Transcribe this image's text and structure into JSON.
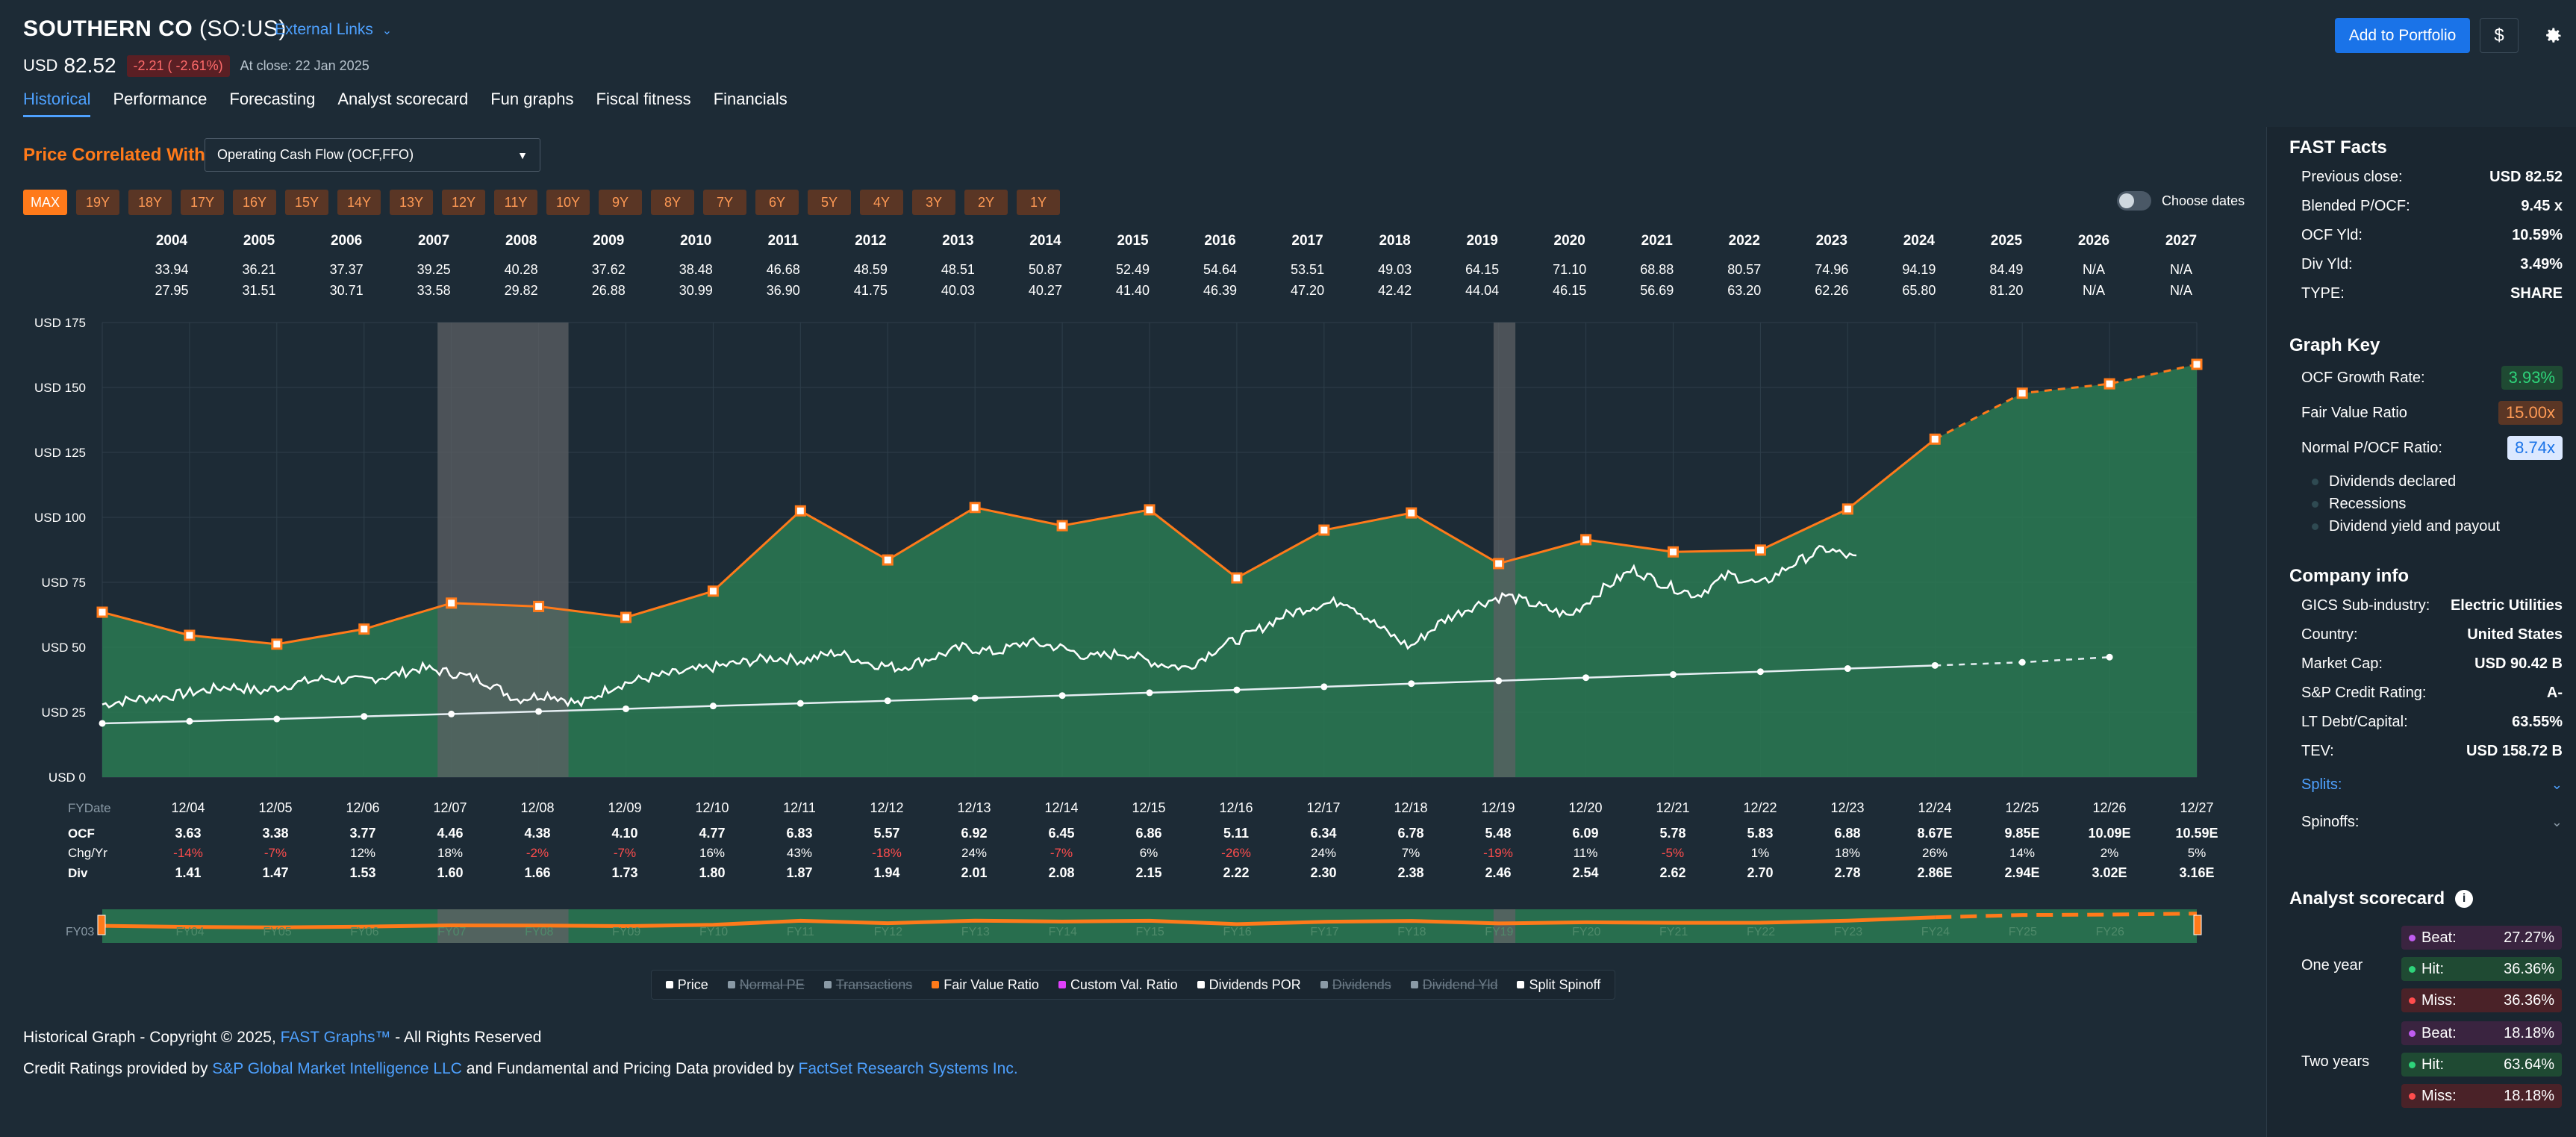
{
  "header": {
    "company": "SOUTHERN CO",
    "ticker": "(SO:US)",
    "external_links": "External Links",
    "currency": "USD",
    "price": "82.52",
    "change": "-2.21 ( -2.61%)",
    "close_text": "At close: 22 Jan 2025",
    "add_portfolio": "Add to Portfolio",
    "dollar_icon": "$"
  },
  "tabs": [
    "Historical",
    "Performance",
    "Forecasting",
    "Analyst scorecard",
    "Fun graphs",
    "Fiscal fitness",
    "Financials"
  ],
  "controls": {
    "price_correlated_label": "Price Correlated With",
    "metric_selected": "Operating Cash Flow (OCF,FFO)",
    "range_buttons": [
      "MAX",
      "19Y",
      "18Y",
      "17Y",
      "16Y",
      "15Y",
      "14Y",
      "13Y",
      "12Y",
      "11Y",
      "10Y",
      "9Y",
      "8Y",
      "7Y",
      "6Y",
      "5Y",
      "4Y",
      "3Y",
      "2Y",
      "1Y"
    ],
    "choose_dates": "Choose dates"
  },
  "chart_data": {
    "type": "area",
    "years": [
      "2004",
      "2005",
      "2006",
      "2007",
      "2008",
      "2009",
      "2010",
      "2011",
      "2012",
      "2013",
      "2014",
      "2015",
      "2016",
      "2017",
      "2018",
      "2019",
      "2020",
      "2021",
      "2022",
      "2023",
      "2024",
      "2025",
      "2026",
      "2027"
    ],
    "price_high": [
      "33.94",
      "36.21",
      "37.37",
      "39.25",
      "40.28",
      "37.62",
      "38.48",
      "46.68",
      "48.59",
      "48.51",
      "50.87",
      "52.49",
      "54.64",
      "53.51",
      "49.03",
      "64.15",
      "71.10",
      "68.88",
      "80.57",
      "74.96",
      "94.19",
      "84.49",
      "N/A",
      "N/A"
    ],
    "price_low": [
      "27.95",
      "31.51",
      "30.71",
      "33.58",
      "29.82",
      "26.88",
      "30.99",
      "36.90",
      "41.75",
      "40.03",
      "40.27",
      "41.40",
      "46.39",
      "47.20",
      "42.42",
      "44.04",
      "46.15",
      "56.69",
      "63.20",
      "62.26",
      "65.80",
      "81.20",
      "N/A",
      "N/A"
    ],
    "y_ticks": [
      "USD 175",
      "USD 150",
      "USD 125",
      "USD 100",
      "USD 75",
      "USD 50",
      "USD 25",
      "USD 0"
    ],
    "ylim": [
      0,
      175
    ],
    "fy_label": "FYDate",
    "fy_dates": [
      "12/04",
      "12/05",
      "12/06",
      "12/07",
      "12/08",
      "12/09",
      "12/10",
      "12/11",
      "12/12",
      "12/13",
      "12/14",
      "12/15",
      "12/16",
      "12/17",
      "12/18",
      "12/19",
      "12/20",
      "12/21",
      "12/22",
      "12/23",
      "12/24",
      "12/25",
      "12/26",
      "12/27"
    ],
    "ocf_label": "OCF",
    "ocf": [
      "3.63",
      "3.38",
      "3.77",
      "4.46",
      "4.38",
      "4.10",
      "4.77",
      "6.83",
      "5.57",
      "6.92",
      "6.45",
      "6.86",
      "5.11",
      "6.34",
      "6.78",
      "5.48",
      "6.09",
      "5.78",
      "5.83",
      "6.88",
      "8.67E",
      "9.85E",
      "10.09E",
      "10.59E"
    ],
    "chg_label": "Chg/Yr",
    "chg": [
      "-14%",
      "-7%",
      "12%",
      "18%",
      "-2%",
      "-7%",
      "16%",
      "43%",
      "-18%",
      "24%",
      "-7%",
      "6%",
      "-26%",
      "24%",
      "7%",
      "-19%",
      "11%",
      "-5%",
      "1%",
      "18%",
      "26%",
      "14%",
      "2%",
      "5%"
    ],
    "div_label": "Div",
    "div": [
      "1.41",
      "1.47",
      "1.53",
      "1.60",
      "1.66",
      "1.73",
      "1.80",
      "1.87",
      "1.94",
      "2.01",
      "2.08",
      "2.15",
      "2.22",
      "2.30",
      "2.38",
      "2.46",
      "2.54",
      "2.62",
      "2.70",
      "2.78",
      "2.86E",
      "2.94E",
      "3.02E",
      "3.16E"
    ],
    "fair_value": [
      63.5,
      54.6,
      51.2,
      57.0,
      67.0,
      65.7,
      61.5,
      71.6,
      102.5,
      83.6,
      103.8,
      96.8,
      102.9,
      76.7,
      95.1,
      101.7,
      82.2,
      91.4,
      86.7,
      87.4,
      103.2,
      130.1,
      147.8,
      151.4,
      158.9
    ],
    "fair_value_x": [
      0,
      1,
      2,
      3,
      4,
      5,
      6,
      7,
      8,
      9,
      10,
      11,
      12,
      13,
      14,
      15,
      16,
      17,
      18,
      19,
      20,
      21,
      22,
      23,
      24
    ],
    "dividends_por": [
      20.7,
      21.5,
      22.4,
      23.4,
      24.3,
      25.3,
      26.3,
      27.4,
      28.4,
      29.4,
      30.4,
      31.4,
      32.5,
      33.6,
      34.8,
      36.0,
      37.1,
      38.3,
      39.5,
      40.6,
      41.8,
      43.0,
      44.2,
      46.2
    ],
    "price_path": [
      28,
      30,
      31,
      33,
      35,
      33,
      36,
      38,
      37,
      39,
      42,
      40,
      37,
      30,
      32,
      28,
      35,
      38,
      40,
      42,
      44,
      46,
      45,
      48,
      44,
      42,
      46,
      50,
      48,
      52,
      50,
      46,
      48,
      44,
      42,
      50,
      55,
      62,
      66,
      68,
      58,
      50,
      60,
      66,
      70,
      66,
      62,
      72,
      80,
      74,
      70,
      78,
      74,
      82,
      88,
      84
    ],
    "price_path_x_start": 0,
    "price_path_x_end": 20.1,
    "recessions": [
      [
        3.0,
        4.5
      ],
      [
        15.1,
        15.35
      ]
    ],
    "mini_labels": [
      "FY03",
      "FY04",
      "FY05",
      "FY06",
      "FY07",
      "FY08",
      "FY09",
      "FY10",
      "FY11",
      "FY12",
      "FY13",
      "FY14",
      "FY15",
      "FY16",
      "FY17",
      "FY18",
      "FY19",
      "FY20",
      "FY21",
      "FY22",
      "FY23",
      "FY24",
      "FY25",
      "FY26"
    ]
  },
  "legend": [
    {
      "label": "Price",
      "off": false,
      "color": "#ffffff"
    },
    {
      "label": "Normal PE",
      "off": true,
      "color": "#8a9aa6"
    },
    {
      "label": "Transactions",
      "off": true,
      "color": "#8a9aa6"
    },
    {
      "label": "Fair Value Ratio",
      "off": false,
      "color": "#ff7a1a"
    },
    {
      "label": "Custom Val. Ratio",
      "off": false,
      "color": "#e040fb"
    },
    {
      "label": "Dividends POR",
      "off": false,
      "color": "#ffffff"
    },
    {
      "label": "Dividends",
      "off": true,
      "color": "#8a9aa6"
    },
    {
      "label": "Dividend Yld",
      "off": true,
      "color": "#8a9aa6"
    },
    {
      "label": "Split Spinoff",
      "off": false,
      "color": "#ffffff"
    }
  ],
  "fast_facts": {
    "title": "FAST Facts",
    "rows": [
      {
        "label": "Previous close:",
        "value": "USD 82.52"
      },
      {
        "label": "Blended P/OCF:",
        "value": "9.45 x"
      },
      {
        "label": "OCF Yld:",
        "value": "10.59%"
      },
      {
        "label": "Div Yld:",
        "value": "3.49%"
      },
      {
        "label": "TYPE:",
        "value": "SHARE"
      }
    ]
  },
  "graph_key": {
    "title": "Graph Key",
    "ocf_growth_label": "OCF Growth Rate:",
    "ocf_growth_value": "3.93%",
    "fair_value_label": "Fair Value Ratio",
    "fair_value_value": "15.00x",
    "normal_label": "Normal P/OCF Ratio:",
    "normal_value": "8.74x",
    "sub": [
      "Dividends declared",
      "Recessions",
      "Dividend yield and payout"
    ]
  },
  "company_info": {
    "title": "Company info",
    "rows": [
      {
        "label": "GICS Sub-industry:",
        "value": "Electric Utilities"
      },
      {
        "label": "Country:",
        "value": "United States"
      },
      {
        "label": "Market Cap:",
        "value": "USD 90.42 B"
      },
      {
        "label": "S&P Credit Rating:",
        "value": "A-"
      },
      {
        "label": "LT Debt/Capital:",
        "value": "63.55%"
      },
      {
        "label": "TEV:",
        "value": "USD 158.72 B"
      }
    ],
    "splits": "Splits:",
    "spinoffs": "Spinoffs:"
  },
  "analyst_scorecard": {
    "title": "Analyst scorecard",
    "one_year": "One year",
    "two_years": "Two years",
    "one_year_rows": [
      {
        "label": "Beat:",
        "value": "27.27%",
        "bg": "#3a2440",
        "dot": "#c05cf0"
      },
      {
        "label": "Hit:",
        "value": "36.36%",
        "bg": "#1f4a33",
        "dot": "#2ed47a"
      },
      {
        "label": "Miss:",
        "value": "36.36%",
        "bg": "#4a2228",
        "dot": "#ff4d4d"
      }
    ],
    "two_year_rows": [
      {
        "label": "Beat:",
        "value": "18.18%",
        "bg": "#3a2440",
        "dot": "#c05cf0"
      },
      {
        "label": "Hit:",
        "value": "63.64%",
        "bg": "#1f4a33",
        "dot": "#2ed47a"
      },
      {
        "label": "Miss:",
        "value": "18.18%",
        "bg": "#4a2228",
        "dot": "#ff4d4d"
      }
    ]
  },
  "footer": {
    "line1_a": "Historical Graph - Copyright © 2025, ",
    "line1_link": "FAST Graphs™",
    "line1_b": " - All Rights Reserved",
    "line2_a": "Credit Ratings provided by ",
    "line2_link1": "S&P Global Market Intelligence LLC",
    "line2_b": " and Fundamental and Pricing Data provided by ",
    "line2_link2": "FactSet Research Systems Inc."
  },
  "colors": {
    "bg": "#1d2b36",
    "accent": "#1a73e8",
    "orange": "#ff7a1a",
    "area_green": "#2a7a52"
  }
}
